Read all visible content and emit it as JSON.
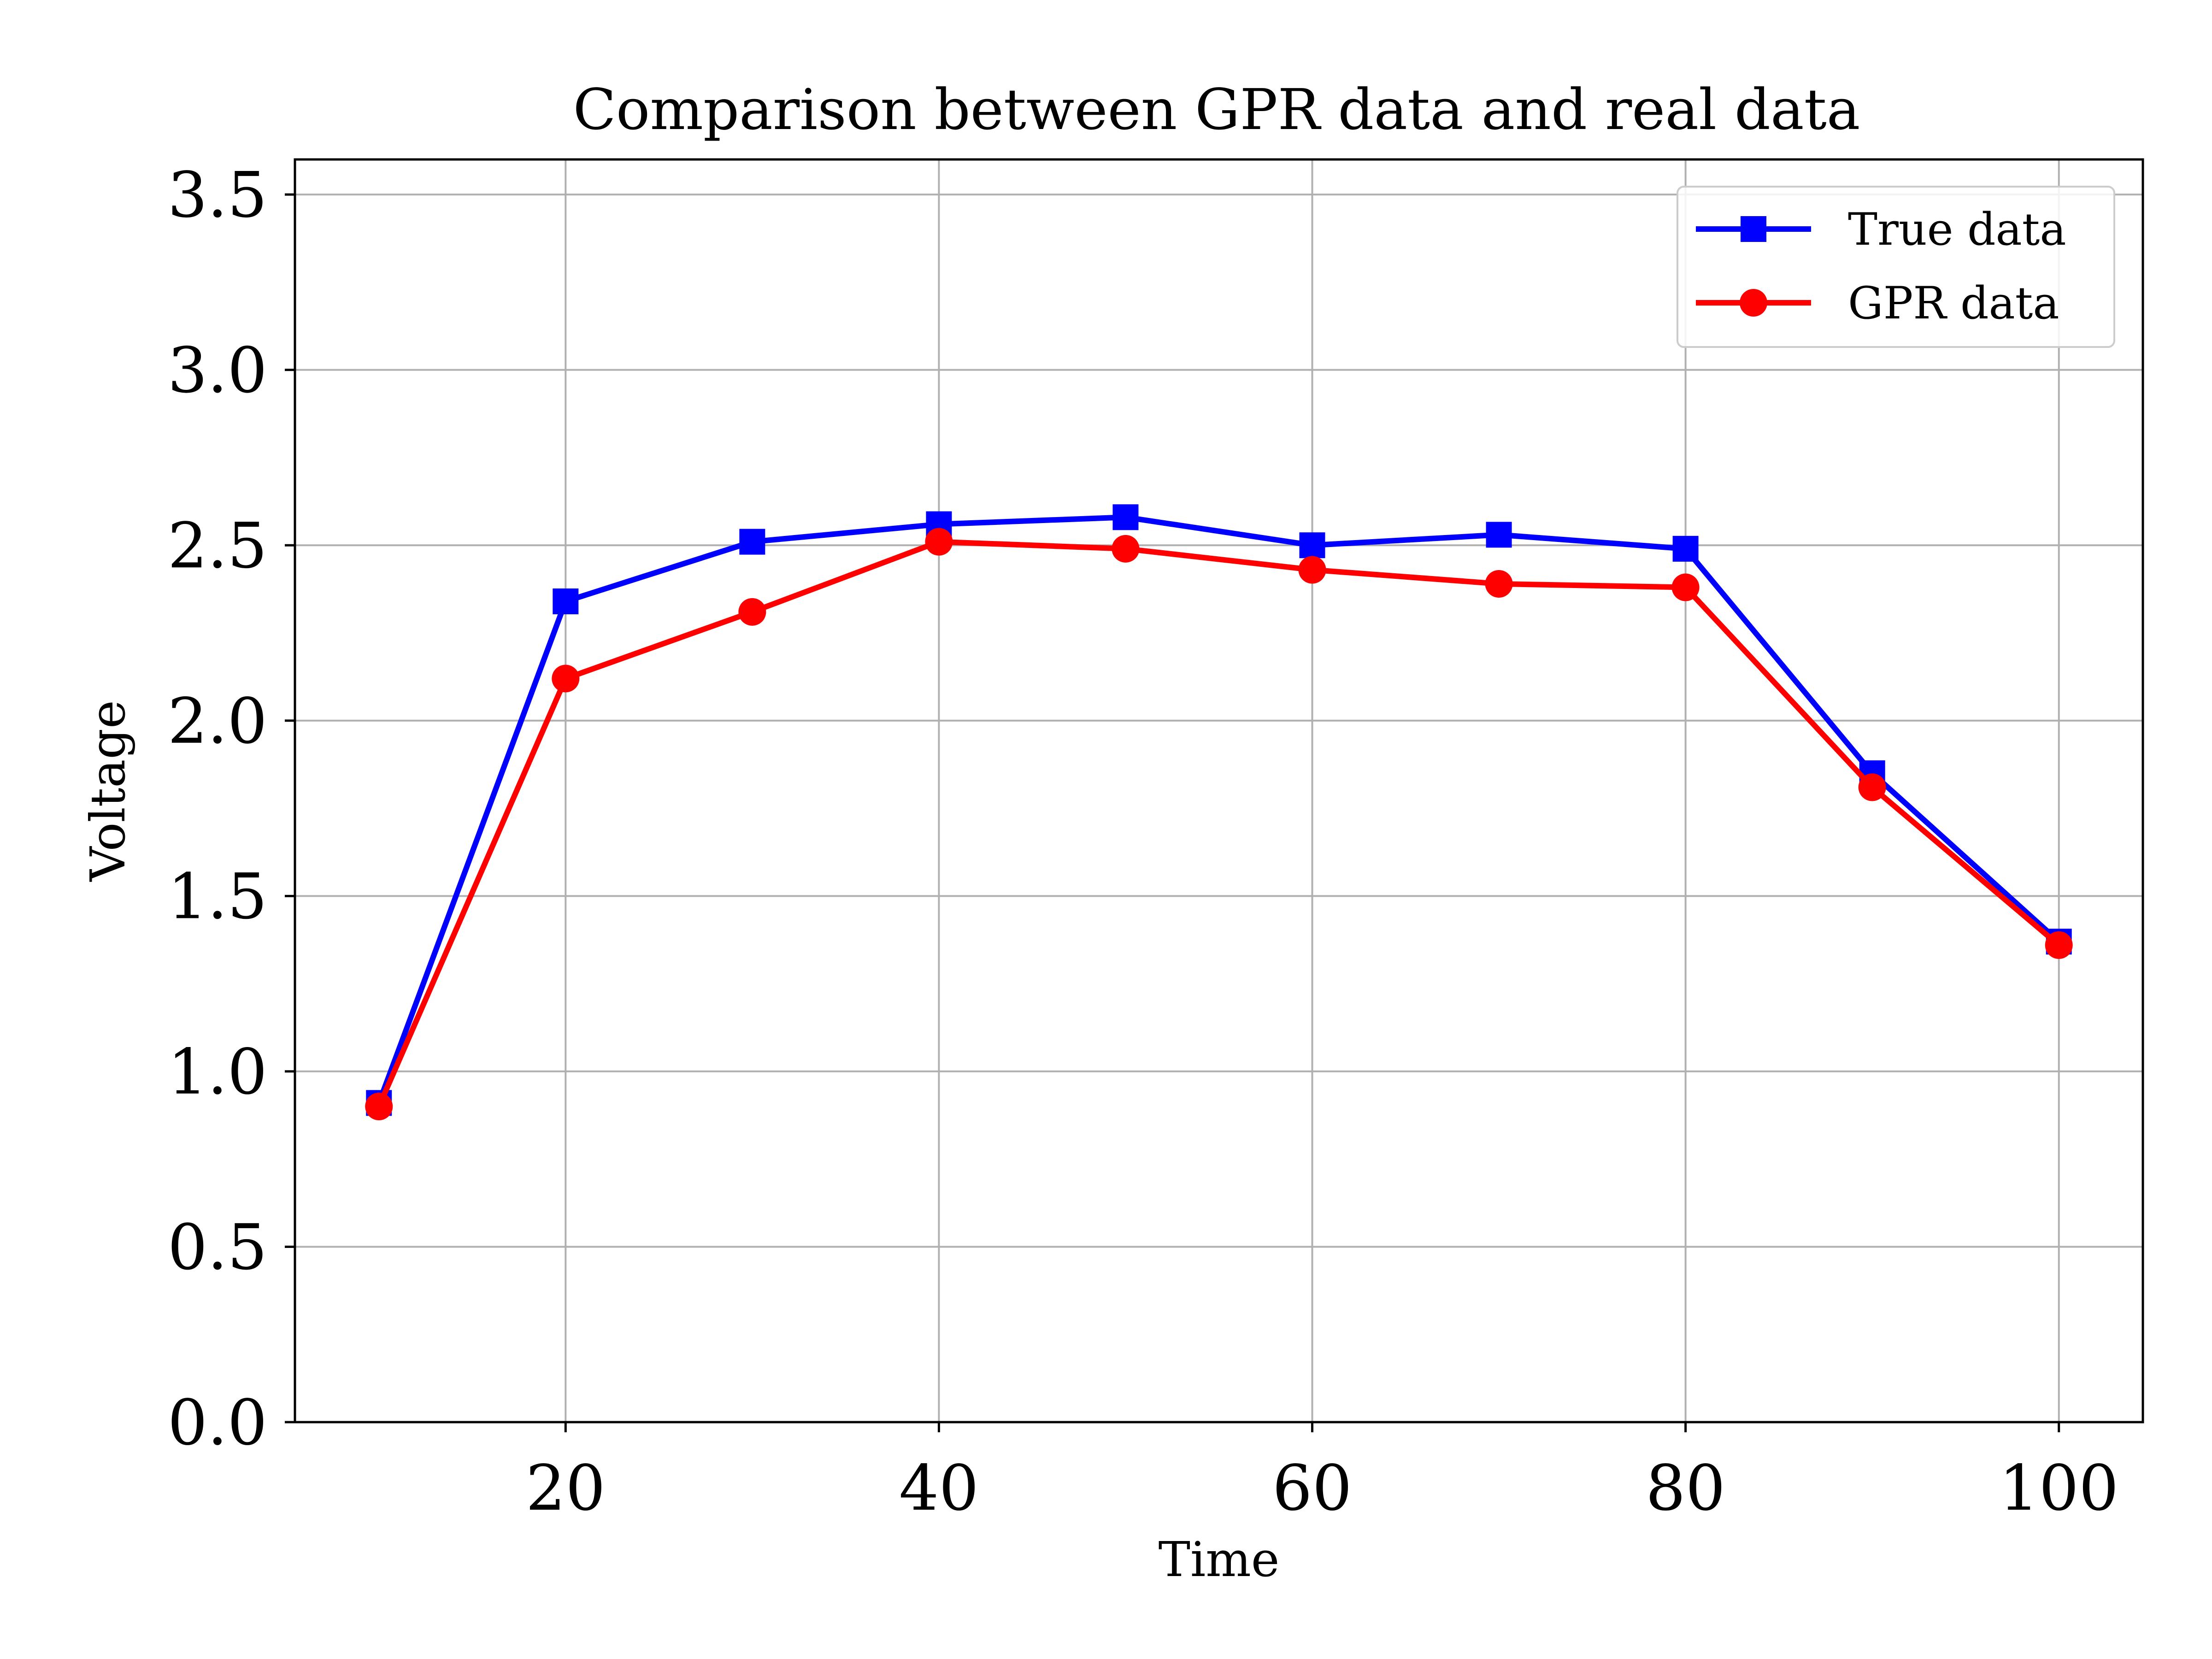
{
  "chart_data": {
    "type": "line",
    "title": "Comparison between GPR data and real data",
    "xlabel": "Time",
    "ylabel": "Voltage",
    "xlim": [
      5.5,
      104.5
    ],
    "ylim": [
      0,
      3.6
    ],
    "xticks": [
      20,
      40,
      60,
      80,
      100
    ],
    "xtick_labels": [
      "20",
      "40",
      "60",
      "80",
      "100"
    ],
    "yticks": [
      0.0,
      0.5,
      1.0,
      1.5,
      2.0,
      2.5,
      3.0,
      3.5
    ],
    "ytick_labels": [
      "0.0",
      "0.5",
      "1.0",
      "1.5",
      "2.0",
      "2.5",
      "3.0",
      "3.5"
    ],
    "grid": true,
    "legend_position": "top-right",
    "x": [
      10,
      20,
      30,
      40,
      50,
      60,
      70,
      80,
      90,
      100
    ],
    "series": [
      {
        "name": "True data",
        "color": "#0000ff",
        "marker": "square",
        "values": [
          0.91,
          2.34,
          2.51,
          2.56,
          2.58,
          2.5,
          2.53,
          2.49,
          1.85,
          1.37
        ]
      },
      {
        "name": "GPR data",
        "color": "#ff0000",
        "marker": "circle",
        "values": [
          0.9,
          2.12,
          2.31,
          2.51,
          2.49,
          2.43,
          2.39,
          2.38,
          1.81,
          1.36
        ]
      }
    ]
  }
}
